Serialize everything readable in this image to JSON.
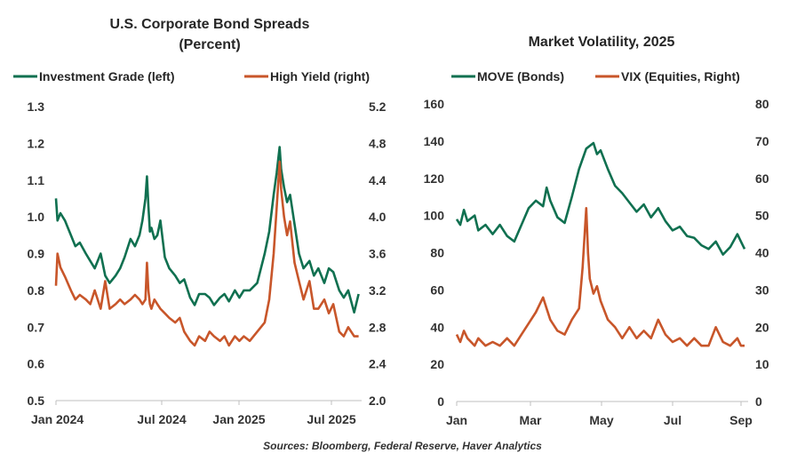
{
  "source": "Sources: Bloomberg, Federal Reserve, Haver Analytics",
  "colors": {
    "green": "#107050",
    "orange": "#C8562A"
  },
  "chart_data": [
    {
      "type": "line",
      "title": "U.S. Corporate Bond Spreads",
      "subtitle": "(Percent)",
      "x_ticks": [
        "Jan 2024",
        "Jul 2024",
        "Jan 2025",
        "Jul 2025"
      ],
      "y_left_ticks": [
        "0.5",
        "0.6",
        "0.7",
        "0.8",
        "0.9",
        "1.0",
        "1.1",
        "1.2",
        "1.3"
      ],
      "y_right_ticks": [
        "2.0",
        "2.4",
        "2.8",
        "3.2",
        "3.6",
        "4.0",
        "4.4",
        "4.8",
        "5.2"
      ],
      "ylim_left": [
        0.5,
        1.3
      ],
      "ylim_right": [
        2.0,
        5.2
      ],
      "xlim": [
        0,
        20.5
      ],
      "series": [
        {
          "name": "Investment Grade (left)",
          "axis": "left",
          "color": "#107050",
          "x": [
            0,
            0.1,
            0.3,
            0.6,
            1.0,
            1.3,
            1.6,
            2.0,
            2.3,
            2.6,
            3.0,
            3.3,
            3.6,
            4.0,
            4.3,
            4.6,
            5.0,
            5.3,
            5.6,
            5.8,
            6.0,
            6.1,
            6.2,
            6.3,
            6.4,
            6.6,
            6.8,
            7.0,
            7.3,
            7.6,
            8.0,
            8.3,
            8.6,
            9.0,
            9.3,
            9.6,
            10.0,
            10.3,
            10.6,
            11.0,
            11.3,
            11.6,
            12.0,
            12.3,
            12.6,
            13.0,
            13.5,
            14.0,
            14.3,
            14.6,
            14.8,
            15.0,
            15.1,
            15.3,
            15.5,
            15.7,
            16.0,
            16.3,
            16.6,
            17.0,
            17.3,
            17.6,
            18.0,
            18.3,
            18.6,
            19.0,
            19.3,
            19.6,
            20.0,
            20.3
          ],
          "y": [
            1.05,
            0.99,
            1.01,
            0.99,
            0.95,
            0.92,
            0.93,
            0.9,
            0.88,
            0.86,
            0.9,
            0.84,
            0.82,
            0.84,
            0.86,
            0.89,
            0.94,
            0.92,
            0.95,
            0.99,
            1.05,
            1.11,
            1.03,
            0.96,
            0.97,
            0.94,
            0.95,
            0.99,
            0.89,
            0.86,
            0.84,
            0.82,
            0.83,
            0.78,
            0.76,
            0.79,
            0.79,
            0.78,
            0.76,
            0.78,
            0.79,
            0.77,
            0.8,
            0.78,
            0.8,
            0.8,
            0.82,
            0.9,
            0.96,
            1.06,
            1.12,
            1.19,
            1.13,
            1.08,
            1.04,
            1.06,
            0.98,
            0.9,
            0.86,
            0.88,
            0.84,
            0.86,
            0.82,
            0.86,
            0.85,
            0.8,
            0.78,
            0.8,
            0.74,
            0.79
          ]
        },
        {
          "name": "High Yield (right)",
          "axis": "right",
          "color": "#C8562A",
          "x": [
            0,
            0.1,
            0.3,
            0.6,
            1.0,
            1.3,
            1.6,
            2.0,
            2.3,
            2.6,
            3.0,
            3.3,
            3.6,
            4.0,
            4.3,
            4.6,
            5.0,
            5.3,
            5.6,
            5.8,
            6.0,
            6.1,
            6.2,
            6.3,
            6.4,
            6.6,
            6.8,
            7.0,
            7.3,
            7.6,
            8.0,
            8.3,
            8.6,
            9.0,
            9.3,
            9.6,
            10.0,
            10.3,
            10.6,
            11.0,
            11.3,
            11.6,
            12.0,
            12.3,
            12.6,
            13.0,
            13.5,
            14.0,
            14.3,
            14.6,
            14.8,
            15.0,
            15.1,
            15.3,
            15.5,
            15.7,
            16.0,
            16.3,
            16.6,
            17.0,
            17.3,
            17.6,
            18.0,
            18.3,
            18.6,
            19.0,
            19.3,
            19.6,
            20.0,
            20.3
          ],
          "y": [
            3.25,
            3.6,
            3.45,
            3.35,
            3.2,
            3.1,
            3.15,
            3.1,
            3.05,
            3.2,
            3.0,
            3.3,
            3.0,
            3.05,
            3.1,
            3.05,
            3.1,
            3.15,
            3.1,
            3.05,
            3.1,
            3.5,
            3.2,
            3.05,
            3.0,
            3.1,
            3.05,
            3.0,
            2.95,
            2.9,
            2.85,
            2.9,
            2.75,
            2.65,
            2.6,
            2.7,
            2.65,
            2.75,
            2.7,
            2.65,
            2.7,
            2.6,
            2.7,
            2.65,
            2.7,
            2.65,
            2.75,
            2.85,
            3.1,
            3.6,
            4.1,
            4.6,
            4.3,
            4.0,
            3.8,
            3.95,
            3.5,
            3.3,
            3.1,
            3.3,
            3.0,
            3.0,
            3.1,
            2.95,
            3.05,
            2.75,
            2.7,
            2.8,
            2.7,
            2.7
          ]
        }
      ]
    },
    {
      "type": "line",
      "title": "Market Volatility,  2025",
      "x_ticks": [
        "Jan",
        "Mar",
        "May",
        "Jul",
        "Sep"
      ],
      "y_left_ticks": [
        "0",
        "20",
        "40",
        "60",
        "80",
        "100",
        "120",
        "140",
        "160"
      ],
      "y_right_ticks": [
        "0",
        "10",
        "20",
        "30",
        "40",
        "50",
        "60",
        "70",
        "80"
      ],
      "ylim_left": [
        0,
        160
      ],
      "ylim_right": [
        0,
        80
      ],
      "xlim": [
        0,
        8.1
      ],
      "series": [
        {
          "name": "MOVE (Bonds)",
          "axis": "left",
          "color": "#107050",
          "x": [
            0,
            0.1,
            0.2,
            0.3,
            0.5,
            0.6,
            0.8,
            1.0,
            1.2,
            1.4,
            1.6,
            1.8,
            2.0,
            2.2,
            2.4,
            2.5,
            2.6,
            2.8,
            3.0,
            3.2,
            3.4,
            3.6,
            3.8,
            3.9,
            4.0,
            4.2,
            4.4,
            4.6,
            4.8,
            5.0,
            5.2,
            5.4,
            5.6,
            5.8,
            6.0,
            6.2,
            6.4,
            6.6,
            6.8,
            7.0,
            7.2,
            7.4,
            7.6,
            7.8,
            7.9,
            8.0
          ],
          "y": [
            98,
            95,
            103,
            97,
            100,
            92,
            95,
            90,
            95,
            89,
            86,
            95,
            104,
            108,
            105,
            115,
            108,
            99,
            96,
            110,
            125,
            136,
            139,
            133,
            135,
            125,
            116,
            112,
            107,
            102,
            106,
            99,
            104,
            97,
            92,
            94,
            89,
            88,
            84,
            82,
            86,
            79,
            83,
            90,
            86,
            82
          ]
        },
        {
          "name": "VIX (Equities, Right)",
          "axis": "right",
          "color": "#C8562A",
          "x": [
            0,
            0.1,
            0.2,
            0.3,
            0.5,
            0.6,
            0.8,
            1.0,
            1.2,
            1.4,
            1.6,
            1.8,
            2.0,
            2.2,
            2.4,
            2.5,
            2.6,
            2.8,
            3.0,
            3.2,
            3.4,
            3.5,
            3.6,
            3.65,
            3.7,
            3.8,
            3.9,
            4.0,
            4.2,
            4.4,
            4.6,
            4.8,
            5.0,
            5.2,
            5.4,
            5.6,
            5.8,
            6.0,
            6.2,
            6.4,
            6.6,
            6.8,
            7.0,
            7.2,
            7.4,
            7.6,
            7.8,
            7.9,
            8.0
          ],
          "y": [
            18,
            16,
            19,
            17,
            15,
            17,
            15,
            16,
            15,
            17,
            15,
            18,
            21,
            24,
            28,
            25,
            22,
            19,
            18,
            22,
            25,
            36,
            52,
            40,
            33,
            29,
            31,
            27,
            22,
            20,
            17,
            20,
            17,
            19,
            17,
            22,
            18,
            16,
            17,
            15,
            17,
            15,
            15,
            20,
            16,
            15,
            17,
            15,
            15
          ]
        }
      ]
    }
  ]
}
